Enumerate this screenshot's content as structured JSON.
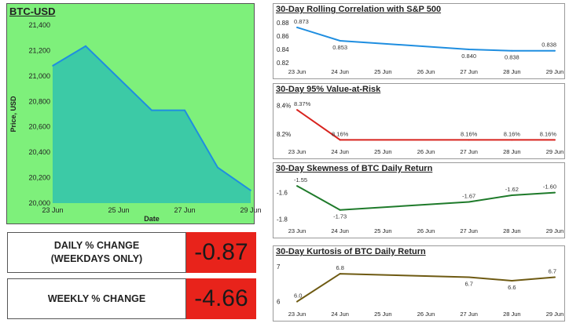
{
  "btc": {
    "title": "BTC-USD",
    "chart_data": {
      "type": "area",
      "x": [
        "23 Jun",
        "24 Jun",
        "26 Jun",
        "27 Jun",
        "28 Jun",
        "29 Jun"
      ],
      "xday": [
        23,
        24,
        26,
        27,
        28,
        29
      ],
      "values": [
        21080,
        21235,
        20730,
        20730,
        20280,
        20100
      ],
      "xticks": [
        "23 Jun",
        "25 Jun",
        "27 Jun",
        "29 Jun"
      ],
      "xtick_days": [
        23,
        25,
        27,
        29
      ],
      "yticks": [
        20000,
        20200,
        20400,
        20600,
        20800,
        21000,
        21200,
        21400
      ],
      "ytick_labels": [
        "20,000",
        "20,200",
        "20,400",
        "20,600",
        "20,800",
        "21,000",
        "21,200",
        "21,400"
      ],
      "ylim": [
        20000,
        21400
      ],
      "xlabel": "Date",
      "ylabel": "Price, USD",
      "line_color": "#1f8ee0",
      "fill_color": "#3ccaa6"
    }
  },
  "kpis": {
    "daily_label": "DAILY % CHANGE\n(WEEKDAYS ONLY)",
    "daily_value": "-0.87",
    "weekly_label": "WEEKLY % CHANGE",
    "weekly_value": "-4.66"
  },
  "charts": [
    {
      "id": "correlation",
      "title": "30-Day Rolling Correlation with S&P 500",
      "chart_data": {
        "type": "line",
        "x": [
          "23 Jun",
          "24 Jun",
          "27 Jun",
          "28 Jun",
          "29 Jun"
        ],
        "xday": [
          23,
          24,
          27,
          28,
          29
        ],
        "values": [
          0.873,
          0.853,
          0.84,
          0.838,
          0.838
        ],
        "point_labels": [
          "0.873",
          "0.853",
          "0.840",
          "0.838",
          "0.838"
        ],
        "yticks": [
          "0.88",
          "0.86",
          "0.84",
          "0.82"
        ],
        "ytick_values": [
          0.88,
          0.86,
          0.84,
          0.82
        ],
        "ylim": [
          0.82,
          0.88
        ],
        "line_color": "#1f8ee0"
      }
    },
    {
      "id": "var",
      "title": "30-Day 95% Value-at-Risk",
      "chart_data": {
        "type": "line",
        "x": [
          "23 Jun",
          "24 Jun",
          "27 Jun",
          "28 Jun",
          "29 Jun"
        ],
        "xday": [
          23,
          24,
          27,
          28,
          29
        ],
        "values": [
          8.37,
          8.16,
          8.16,
          8.16,
          8.16
        ],
        "point_labels": [
          "8.37%",
          "8.16%",
          "8.16%",
          "8.16%",
          "8.16%"
        ],
        "yticks": [
          "8.4%",
          "8.2%"
        ],
        "ytick_values": [
          8.4,
          8.2
        ],
        "ylim": [
          8.14,
          8.42
        ],
        "line_color": "#d8231e"
      }
    },
    {
      "id": "skewness",
      "title": "30-Day Skewness of BTC Daily Return",
      "chart_data": {
        "type": "line",
        "x": [
          "23 Jun",
          "24 Jun",
          "27 Jun",
          "28 Jun",
          "29 Jun"
        ],
        "xday": [
          23,
          24,
          27,
          28,
          29
        ],
        "values": [
          -1.55,
          -1.73,
          -1.67,
          -1.62,
          -1.6
        ],
        "point_labels": [
          "-1.55",
          "-1.73",
          "-1.67",
          "-1.62",
          "-1.60"
        ],
        "yticks": [
          "-1.6",
          "-1.8"
        ],
        "ytick_values": [
          -1.6,
          -1.8
        ],
        "ylim": [
          -1.82,
          -1.52
        ],
        "line_color": "#1e7a2a"
      }
    },
    {
      "id": "kurtosis",
      "title": "30-Day Kurtosis of BTC Daily Return",
      "chart_data": {
        "type": "line",
        "x": [
          "23 Jun",
          "24 Jun",
          "27 Jun",
          "28 Jun",
          "29 Jun"
        ],
        "xday": [
          23,
          24,
          27,
          28,
          29
        ],
        "values": [
          6.0,
          6.8,
          6.7,
          6.6,
          6.7
        ],
        "point_labels": [
          "6.0",
          "6.8",
          "6.7",
          "6.6",
          "6.7"
        ],
        "yticks": [
          "7",
          "6"
        ],
        "ytick_values": [
          7,
          6
        ],
        "ylim": [
          5.9,
          7.05
        ],
        "line_color": "#6e5a12"
      }
    }
  ],
  "small_xticks": [
    "23 Jun",
    "24 Jun",
    "25 Jun",
    "26 Jun",
    "27 Jun",
    "28 Jun",
    "29 Jun"
  ],
  "small_xtick_days": [
    23,
    24,
    25,
    26,
    27,
    28,
    29
  ]
}
